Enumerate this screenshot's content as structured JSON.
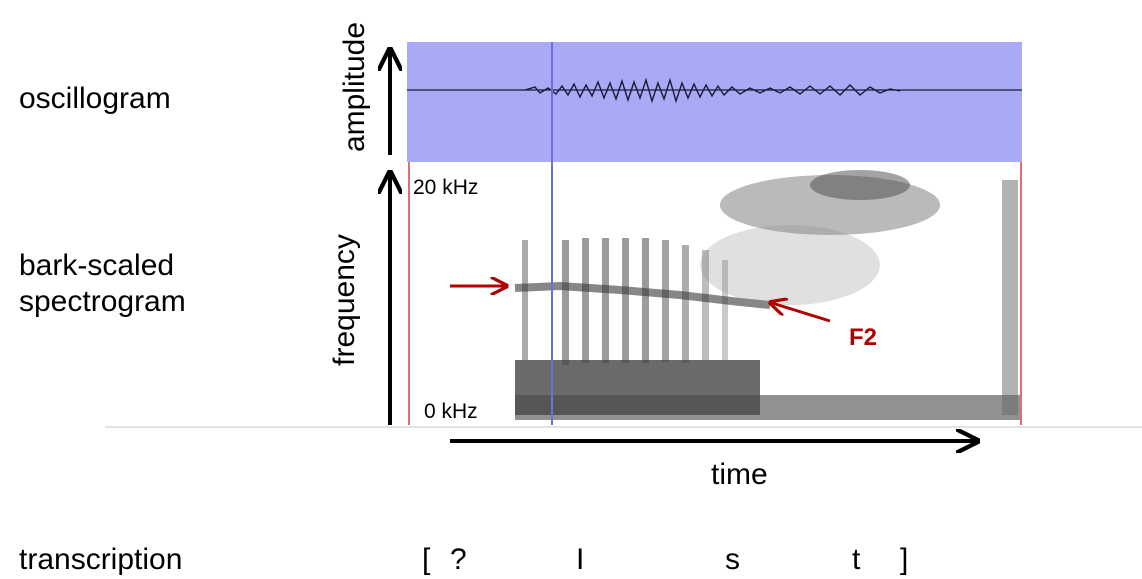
{
  "labels": {
    "oscillogram": "oscillogram",
    "spectrogram_line1": "bark-scaled",
    "spectrogram_line2": "spectrogram",
    "transcription": "transcription",
    "amplitude": "amplitude",
    "frequency": "frequency",
    "time": "time",
    "freq_top": "20 kHz",
    "freq_bottom": "0 kHz",
    "formant": "F2"
  },
  "transcription_symbols": [
    "[",
    "?",
    "I",
    "s",
    "t",
    "]"
  ],
  "colors": {
    "oscillogram_bg": "#a9aaf5",
    "marker_line": "#6b6fd6",
    "boundary_line": "#e07070",
    "annotation_red": "#b00000"
  }
}
